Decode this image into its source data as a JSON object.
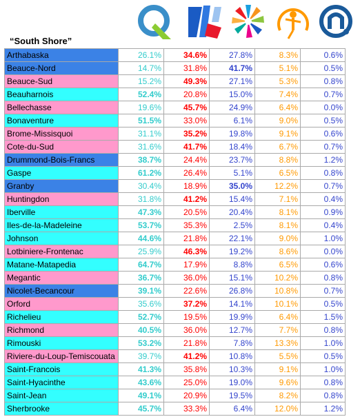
{
  "title": "“South Shore”",
  "colors": {
    "fill_blue": "#3b82e6",
    "fill_pink": "#ff99cc",
    "fill_cyan": "#33ffff",
    "parties": [
      "#33cccc",
      "#ff0000",
      "#3344cc",
      "#ff9900",
      "#3344cc"
    ]
  },
  "parties": [
    {
      "icon": "q-logo-icon",
      "color": "#3a8fc9"
    },
    {
      "icon": "flag-logo-icon",
      "color": "#2255cc"
    },
    {
      "icon": "pinwheel-logo-icon",
      "color": "#1aa0e0"
    },
    {
      "icon": "figure-logo-icon",
      "color": "#ff9900"
    },
    {
      "icon": "n-logo-icon",
      "color": "#1a5a9a"
    }
  ],
  "chart_data": {
    "type": "table",
    "title": "“South Shore”",
    "rows": [
      {
        "riding": "Arthabaska",
        "fill": "blue",
        "values": [
          "26.1%",
          "34.6%",
          "27.8%",
          "8.3%",
          "0.6%"
        ],
        "bold": 1
      },
      {
        "riding": "Beauce-Nord",
        "fill": "blue",
        "values": [
          "14.7%",
          "31.8%",
          "41.7%",
          "5.1%",
          "0.5%"
        ],
        "bold": 2
      },
      {
        "riding": "Beauce-Sud",
        "fill": "pink",
        "values": [
          "15.2%",
          "49.3%",
          "27.1%",
          "5.3%",
          "0.8%"
        ],
        "bold": 1
      },
      {
        "riding": "Beauharnois",
        "fill": "cyan",
        "values": [
          "52.4%",
          "20.8%",
          "15.0%",
          "7.4%",
          "0.7%"
        ],
        "bold": 0
      },
      {
        "riding": "Bellechasse",
        "fill": "pink",
        "values": [
          "19.6%",
          "45.7%",
          "24.9%",
          "6.4%",
          "0.0%"
        ],
        "bold": 1
      },
      {
        "riding": "Bonaventure",
        "fill": "cyan",
        "values": [
          "51.5%",
          "33.0%",
          "6.1%",
          "9.0%",
          "0.5%"
        ],
        "bold": 0
      },
      {
        "riding": "Brome-Missisquoi",
        "fill": "pink",
        "values": [
          "31.1%",
          "35.2%",
          "19.8%",
          "9.1%",
          "0.6%"
        ],
        "bold": 1
      },
      {
        "riding": "Cote-du-Sud",
        "fill": "pink",
        "values": [
          "31.6%",
          "41.7%",
          "18.4%",
          "6.7%",
          "0.7%"
        ],
        "bold": 1
      },
      {
        "riding": "Drummond-Bois-Francs",
        "fill": "blue",
        "values": [
          "38.7%",
          "24.4%",
          "23.7%",
          "8.8%",
          "1.2%"
        ],
        "bold": 0
      },
      {
        "riding": "Gaspe",
        "fill": "cyan",
        "values": [
          "61.2%",
          "26.4%",
          "5.1%",
          "6.5%",
          "0.8%"
        ],
        "bold": 0
      },
      {
        "riding": "Granby",
        "fill": "blue",
        "values": [
          "30.4%",
          "18.9%",
          "35.0%",
          "12.2%",
          "0.7%"
        ],
        "bold": 2
      },
      {
        "riding": "Huntingdon",
        "fill": "pink",
        "values": [
          "31.8%",
          "41.2%",
          "15.4%",
          "7.1%",
          "0.4%"
        ],
        "bold": 1
      },
      {
        "riding": "Iberville",
        "fill": "cyan",
        "values": [
          "47.3%",
          "20.5%",
          "20.4%",
          "8.1%",
          "0.9%"
        ],
        "bold": 0
      },
      {
        "riding": "Iles-de-la-Madeleine",
        "fill": "cyan",
        "values": [
          "53.7%",
          "35.3%",
          "2.5%",
          "8.1%",
          "0.4%"
        ],
        "bold": 0
      },
      {
        "riding": "Johnson",
        "fill": "cyan",
        "values": [
          "44.6%",
          "21.8%",
          "22.1%",
          "9.0%",
          "1.0%"
        ],
        "bold": 0
      },
      {
        "riding": "Lotbiniere-Frontenac",
        "fill": "pink",
        "values": [
          "25.9%",
          "46.3%",
          "19.2%",
          "8.6%",
          "0.0%"
        ],
        "bold": 1
      },
      {
        "riding": "Matane-Matapedia",
        "fill": "cyan",
        "values": [
          "64.7%",
          "17.9%",
          "8.8%",
          "6.5%",
          "0.6%"
        ],
        "bold": 0
      },
      {
        "riding": "Megantic",
        "fill": "pink",
        "values": [
          "36.7%",
          "36.0%",
          "15.1%",
          "10.2%",
          "0.8%"
        ],
        "bold": 0
      },
      {
        "riding": "Nicolet-Becancour",
        "fill": "blue",
        "values": [
          "39.1%",
          "22.6%",
          "26.8%",
          "10.8%",
          "0.7%"
        ],
        "bold": 0
      },
      {
        "riding": "Orford",
        "fill": "pink",
        "values": [
          "35.6%",
          "37.2%",
          "14.1%",
          "10.1%",
          "0.5%"
        ],
        "bold": 1
      },
      {
        "riding": "Richelieu",
        "fill": "cyan",
        "values": [
          "52.7%",
          "19.5%",
          "19.9%",
          "6.4%",
          "1.5%"
        ],
        "bold": 0
      },
      {
        "riding": "Richmond",
        "fill": "pink",
        "values": [
          "40.5%",
          "36.0%",
          "12.7%",
          "7.7%",
          "0.8%"
        ],
        "bold": 0
      },
      {
        "riding": "Rimouski",
        "fill": "cyan",
        "values": [
          "53.2%",
          "21.8%",
          "7.8%",
          "13.3%",
          "1.0%"
        ],
        "bold": 0
      },
      {
        "riding": "Riviere-du-Loup-Temiscouata",
        "fill": "pink",
        "values": [
          "39.7%",
          "41.2%",
          "10.8%",
          "5.5%",
          "0.5%"
        ],
        "bold": 1
      },
      {
        "riding": "Saint-Francois",
        "fill": "cyan",
        "values": [
          "41.3%",
          "35.8%",
          "10.3%",
          "9.1%",
          "1.0%"
        ],
        "bold": 0
      },
      {
        "riding": "Saint-Hyacinthe",
        "fill": "cyan",
        "values": [
          "43.6%",
          "25.0%",
          "19.0%",
          "9.6%",
          "0.8%"
        ],
        "bold": 0
      },
      {
        "riding": "Saint-Jean",
        "fill": "cyan",
        "values": [
          "49.1%",
          "20.9%",
          "19.5%",
          "8.2%",
          "0.8%"
        ],
        "bold": 0
      },
      {
        "riding": "Sherbrooke",
        "fill": "cyan",
        "values": [
          "45.7%",
          "33.3%",
          "6.4%",
          "12.0%",
          "1.2%"
        ],
        "bold": 0
      }
    ]
  }
}
